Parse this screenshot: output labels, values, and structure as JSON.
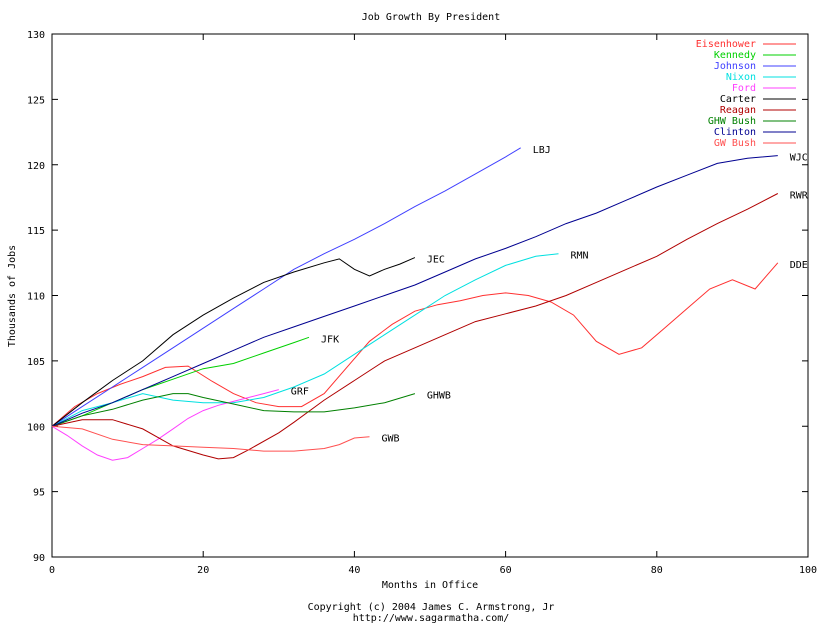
{
  "chart_data": {
    "type": "line",
    "title": "Job Growth By President",
    "xlabel": "Months in Office",
    "ylabel": "Thousands of Jobs",
    "xlim": [
      0,
      100
    ],
    "ylim": [
      90,
      130
    ],
    "xticks": [
      0,
      20,
      40,
      60,
      80,
      100
    ],
    "yticks": [
      90,
      95,
      100,
      105,
      110,
      115,
      120,
      125,
      130
    ],
    "grid": false,
    "legend_position": "top-right",
    "footer": [
      "Copyright (c) 2004 James C. Armstrong, Jr",
      "http://www.sagarmatha.com/"
    ],
    "series": [
      {
        "name": "Eisenhower",
        "end_label": "DDE",
        "color": "#ff3030",
        "x": [
          0,
          3,
          6,
          9,
          12,
          15,
          18,
          21,
          24,
          27,
          30,
          33,
          36,
          39,
          42,
          45,
          48,
          51,
          54,
          57,
          60,
          63,
          66,
          69,
          72,
          75,
          78,
          81,
          84,
          87,
          90,
          93,
          96
        ],
        "y": [
          100,
          101.5,
          102.5,
          103.2,
          103.8,
          104.5,
          104.6,
          103.5,
          102.5,
          101.8,
          101.5,
          101.5,
          102.5,
          104.5,
          106.5,
          107.8,
          108.8,
          109.3,
          109.6,
          110,
          110.2,
          110,
          109.5,
          108.5,
          106.5,
          105.5,
          106,
          107.5,
          109,
          110.5,
          111.2,
          110.5,
          112.5
        ]
      },
      {
        "name": "Kennedy",
        "end_label": "JFK",
        "color": "#00d000",
        "x": [
          0,
          4,
          8,
          12,
          16,
          20,
          24,
          28,
          32,
          34
        ],
        "y": [
          100,
          100.8,
          101.8,
          102.8,
          103.6,
          104.4,
          104.8,
          105.6,
          106.4,
          106.8
        ]
      },
      {
        "name": "Johnson",
        "end_label": "LBJ",
        "color": "#4040ff",
        "x": [
          0,
          4,
          8,
          12,
          16,
          20,
          24,
          28,
          32,
          36,
          40,
          44,
          48,
          52,
          56,
          60,
          62
        ],
        "y": [
          100,
          101.5,
          103,
          104.5,
          106,
          107.5,
          109,
          110.5,
          112,
          113.2,
          114.3,
          115.5,
          116.8,
          118,
          119.3,
          120.6,
          121.3
        ]
      },
      {
        "name": "Nixon",
        "end_label": "RMN",
        "color": "#00e0e0",
        "x": [
          0,
          4,
          8,
          12,
          16,
          20,
          24,
          28,
          32,
          36,
          40,
          44,
          48,
          52,
          56,
          60,
          64,
          67
        ],
        "y": [
          100,
          101.2,
          101.8,
          102.5,
          102,
          101.8,
          101.8,
          102.2,
          103,
          104,
          105.5,
          107,
          108.5,
          110,
          111.2,
          112.3,
          113,
          113.2
        ]
      },
      {
        "name": "Ford",
        "end_label": "GRF",
        "color": "#ff40ff",
        "x": [
          0,
          2,
          4,
          6,
          8,
          10,
          12,
          14,
          16,
          18,
          20,
          22,
          24,
          26,
          28,
          30
        ],
        "y": [
          100,
          99.3,
          98.5,
          97.8,
          97.4,
          97.6,
          98.3,
          99,
          99.8,
          100.6,
          101.2,
          101.6,
          101.9,
          102.2,
          102.5,
          102.8
        ]
      },
      {
        "name": "Carter",
        "end_label": "JEC",
        "color": "#000000",
        "x": [
          0,
          4,
          8,
          12,
          16,
          20,
          24,
          28,
          32,
          36,
          38,
          40,
          42,
          44,
          46,
          48
        ],
        "y": [
          100,
          101.8,
          103.5,
          105,
          107,
          108.5,
          109.8,
          111,
          111.8,
          112.5,
          112.8,
          112,
          111.5,
          112,
          112.4,
          112.9
        ]
      },
      {
        "name": "Reagan",
        "end_label": "RWR",
        "color": "#b00000",
        "x": [
          0,
          4,
          8,
          12,
          16,
          20,
          22,
          24,
          26,
          30,
          32,
          36,
          40,
          44,
          48,
          52,
          56,
          60,
          64,
          68,
          72,
          76,
          80,
          84,
          88,
          92,
          96
        ],
        "y": [
          100,
          100.5,
          100.5,
          99.8,
          98.5,
          97.8,
          97.5,
          97.6,
          98.2,
          99.5,
          100.3,
          102,
          103.5,
          105,
          106,
          107,
          108,
          108.6,
          109.2,
          110,
          111,
          112,
          113,
          114.3,
          115.5,
          116.6,
          117.8
        ]
      },
      {
        "name": "GHW Bush",
        "end_label": "GHWB",
        "color": "#008000",
        "x": [
          0,
          4,
          8,
          12,
          16,
          18,
          20,
          24,
          28,
          32,
          36,
          40,
          44,
          48
        ],
        "y": [
          100,
          100.8,
          101.3,
          102,
          102.5,
          102.5,
          102.2,
          101.7,
          101.2,
          101.1,
          101.1,
          101.4,
          101.8,
          102.5
        ]
      },
      {
        "name": "Clinton",
        "end_label": "WJC",
        "color": "#000090",
        "x": [
          0,
          4,
          8,
          12,
          16,
          20,
          24,
          28,
          32,
          36,
          40,
          44,
          48,
          52,
          56,
          60,
          64,
          68,
          72,
          76,
          80,
          84,
          88,
          92,
          96
        ],
        "y": [
          100,
          101,
          101.8,
          102.8,
          103.8,
          104.8,
          105.8,
          106.8,
          107.6,
          108.4,
          109.2,
          110,
          110.8,
          111.8,
          112.8,
          113.6,
          114.5,
          115.5,
          116.3,
          117.3,
          118.3,
          119.2,
          120.1,
          120.5,
          120.7
        ]
      },
      {
        "name": "GW Bush",
        "end_label": "GWB",
        "color": "#ff5050",
        "x": [
          0,
          4,
          8,
          12,
          16,
          20,
          24,
          28,
          32,
          36,
          38,
          40,
          42
        ],
        "y": [
          100,
          99.8,
          99,
          98.6,
          98.5,
          98.4,
          98.3,
          98.1,
          98.1,
          98.3,
          98.6,
          99.1,
          99.2
        ]
      }
    ]
  }
}
